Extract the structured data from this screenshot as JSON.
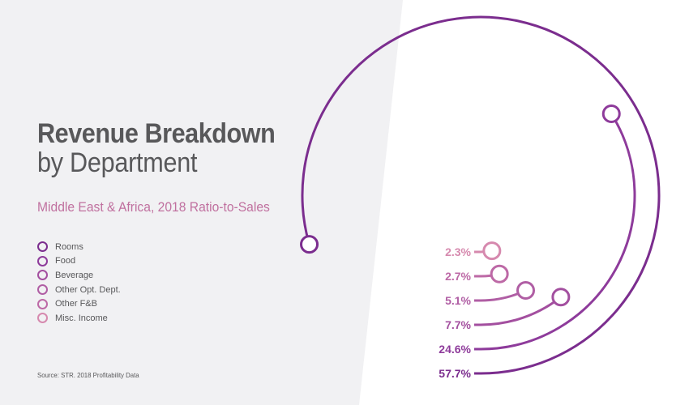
{
  "title_line1": "Revenue Breakdown",
  "title_line2": "by Department",
  "subtitle": "Middle East & Africa, 2018 Ratio-to-Sales",
  "source": "Source: STR.  2018 Profitability Data",
  "colors": {
    "background_panel": "#f1f1f3",
    "label_text": "#58585a",
    "subtitle": "#c0709f"
  },
  "chart_data": {
    "type": "radial-arc",
    "title": "Revenue Breakdown by Department",
    "subtitle": "Middle East & Africa, 2018 Ratio-to-Sales",
    "unit": "%",
    "categories": [
      "Rooms",
      "Food",
      "Beverage",
      "Other Opt. Dept.",
      "Other F&B",
      "Misc. Income"
    ],
    "values": [
      57.7,
      24.6,
      7.7,
      5.1,
      2.7,
      2.3
    ],
    "labels": [
      "57.7%",
      "24.6%",
      "7.7%",
      "5.1%",
      "2.7%",
      "2.3%"
    ],
    "colors": [
      "#7b2d8e",
      "#8e3b9b",
      "#a34f9f",
      "#b05ea4",
      "#bd69a6",
      "#d689ae"
    ],
    "legend_position": "left"
  }
}
